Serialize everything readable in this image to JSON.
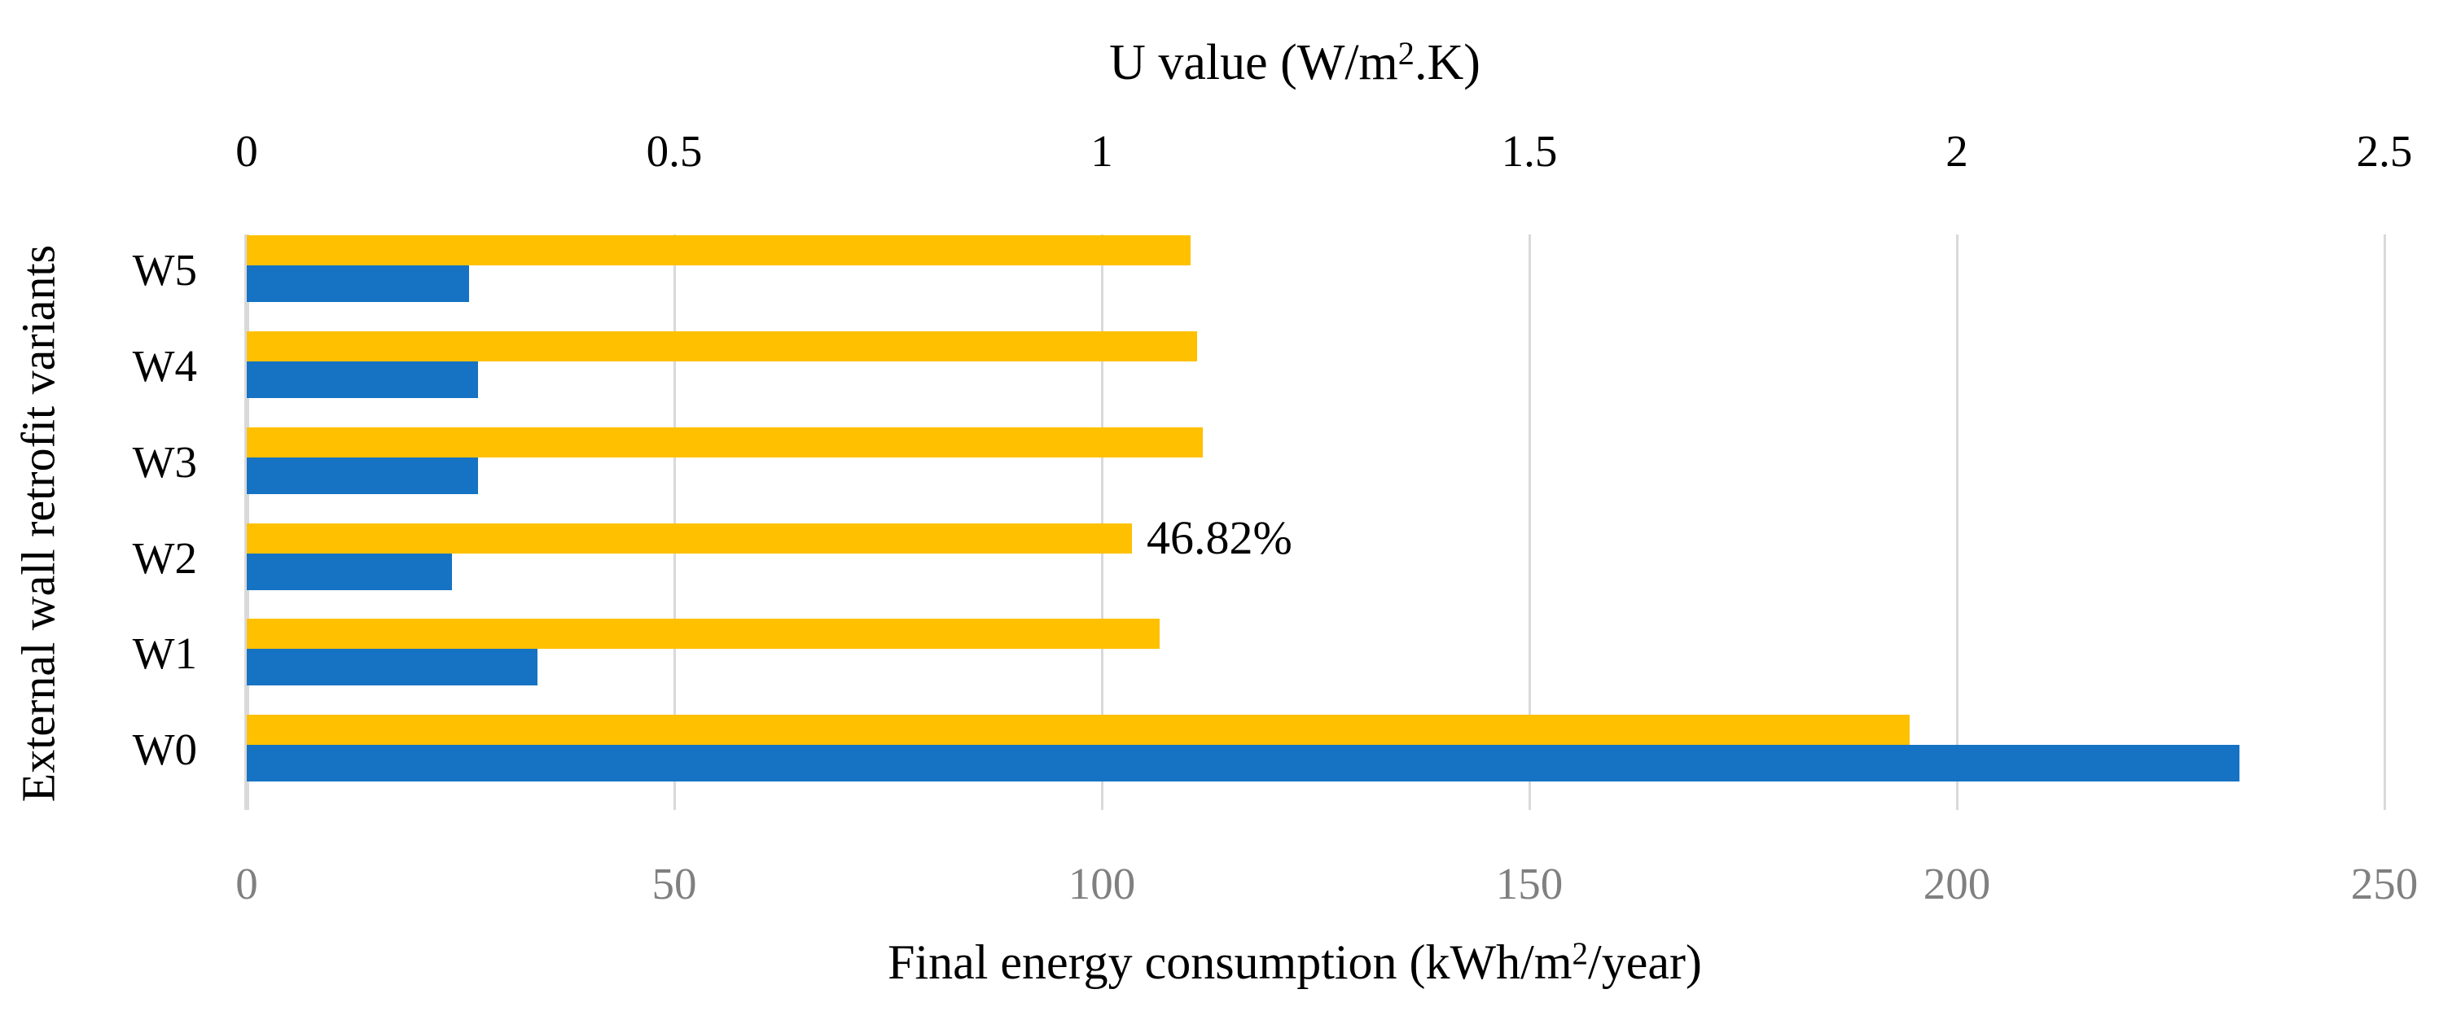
{
  "page": {
    "background": "#FFFFFF"
  },
  "top_axis": {
    "title_parts": [
      "U value (W/m",
      "2",
      ".K)"
    ],
    "tick_labels": [
      "0",
      "0.5",
      "1",
      "1.5",
      "2",
      "2.5"
    ],
    "tick_color": "#000000"
  },
  "bottom_axis": {
    "title_parts": [
      "Final energy consumption (kWh/m",
      "2",
      "/year)"
    ],
    "tick_labels": [
      "0",
      "50",
      "100",
      "150",
      "200",
      "250"
    ],
    "tick_color": "#808080"
  },
  "left_axis": {
    "title": "External wall retrofit variants"
  },
  "chart_data": {
    "type": "bar",
    "orientation": "horizontal",
    "title": "",
    "categories": [
      "W5",
      "W4",
      "W3",
      "W2",
      "W1",
      "W0"
    ],
    "series": [
      {
        "name": "Final energy consumption (kWh/m2/year)",
        "axis": "bottom",
        "color": "#FFC000",
        "values": [
          110.4,
          111.1,
          111.8,
          103.5,
          106.8,
          194.5
        ]
      },
      {
        "name": "U value (W/m2.K)",
        "axis": "top",
        "color": "#1673C4",
        "values": [
          0.26,
          0.27,
          0.27,
          0.24,
          0.34,
          2.33
        ]
      }
    ],
    "annotation": {
      "text": "46.82%",
      "category": "W2",
      "series_index": 0
    },
    "top_axis_range": [
      0,
      2.5
    ],
    "top_axis_step": 0.5,
    "bottom_axis_range": [
      0,
      250
    ],
    "bottom_axis_step": 50,
    "grid": true,
    "gridline_color": "#D9D9D9",
    "axis_line_color": "#D9D9D9",
    "legend": "none"
  }
}
